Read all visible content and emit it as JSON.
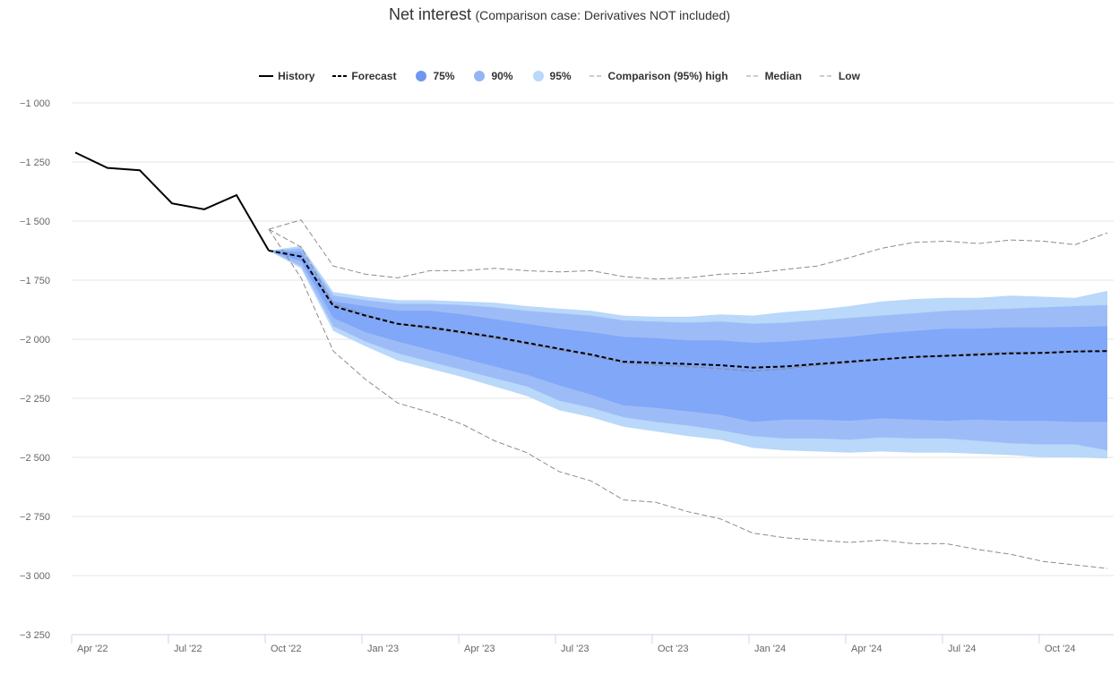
{
  "title": {
    "main": "Net interest",
    "subtitle": "(Comparison case: Derivatives NOT included)"
  },
  "legend": [
    {
      "label": "History",
      "kind": "solid",
      "color": "#000000",
      "name": "legend-history"
    },
    {
      "label": "Forecast",
      "kind": "dashed",
      "color": "#000000",
      "name": "legend-forecast"
    },
    {
      "label": "75%",
      "kind": "dot",
      "color": "#6f97f0",
      "name": "legend-75"
    },
    {
      "label": "90%",
      "kind": "dot",
      "color": "#93b5f5",
      "name": "legend-90"
    },
    {
      "label": "95%",
      "kind": "dot",
      "color": "#b9d8fa",
      "name": "legend-95"
    },
    {
      "label": "Comparison (95%) high",
      "kind": "dashed-gray",
      "color": "#999999",
      "name": "legend-comparison-high"
    },
    {
      "label": "Median",
      "kind": "dashed-gray",
      "color": "#999999",
      "name": "legend-median"
    },
    {
      "label": "Low",
      "kind": "dashed-gray",
      "color": "#999999",
      "name": "legend-low"
    }
  ],
  "chart_data": {
    "type": "area",
    "y_ticks": [
      -1000,
      -1250,
      -1500,
      -1750,
      -2000,
      -2250,
      -2500,
      -2750,
      -3000,
      -3250
    ],
    "y_tick_labels": [
      "−1 000",
      "−1 250",
      "−1 500",
      "−1 750",
      "−2 000",
      "−2 250",
      "−2 500",
      "−2 750",
      "−3 000",
      "−3 250"
    ],
    "ylim": [
      -3250,
      -1000
    ],
    "x_ticks": [
      {
        "label": "Apr '22",
        "month": 0
      },
      {
        "label": "Jul '22",
        "month": 3
      },
      {
        "label": "Oct '22",
        "month": 6
      },
      {
        "label": "Jan '23",
        "month": 9
      },
      {
        "label": "Apr '23",
        "month": 12
      },
      {
        "label": "Jul '23",
        "month": 15
      },
      {
        "label": "Oct '23",
        "month": 18
      },
      {
        "label": "Jan '24",
        "month": 21
      },
      {
        "label": "Apr '24",
        "month": 24
      },
      {
        "label": "Jul '24",
        "month": 27
      },
      {
        "label": "Oct '24",
        "month": 30
      }
    ],
    "x_range_months": [
      0,
      32.2
    ],
    "history": {
      "x": [
        0,
        1,
        2,
        3,
        4,
        5,
        6
      ],
      "y": [
        -1210,
        -1275,
        -1285,
        -1425,
        -1450,
        -1390,
        -1625
      ]
    },
    "forecast": {
      "x": [
        6,
        7,
        8,
        9,
        10,
        11,
        12,
        13,
        14,
        15,
        16,
        17,
        18,
        19,
        20,
        21,
        22,
        23,
        24,
        25,
        26,
        27,
        28,
        29,
        30,
        31,
        32
      ],
      "y": [
        -1625,
        -1650,
        -1860,
        -1900,
        -1935,
        -1950,
        -1970,
        -1990,
        -2015,
        -2040,
        -2065,
        -2095,
        -2100,
        -2105,
        -2110,
        -2120,
        -2115,
        -2105,
        -2095,
        -2085,
        -2075,
        -2070,
        -2065,
        -2060,
        -2058,
        -2052,
        -2050
      ]
    },
    "bands": [
      {
        "name": "95%",
        "color": "#b9d8fa",
        "x": [
          6,
          7,
          8,
          9,
          10,
          11,
          12,
          13,
          14,
          15,
          16,
          17,
          18,
          19,
          20,
          21,
          22,
          23,
          24,
          25,
          26,
          27,
          28,
          29,
          30,
          31,
          32
        ],
        "upper": [
          -1625,
          -1605,
          -1800,
          -1820,
          -1835,
          -1835,
          -1840,
          -1845,
          -1860,
          -1870,
          -1880,
          -1900,
          -1905,
          -1905,
          -1895,
          -1900,
          -1885,
          -1875,
          -1860,
          -1840,
          -1830,
          -1825,
          -1825,
          -1815,
          -1820,
          -1825,
          -1795
        ],
        "lower": [
          -1625,
          -1700,
          -1965,
          -2030,
          -2090,
          -2125,
          -2160,
          -2200,
          -2240,
          -2300,
          -2330,
          -2370,
          -2390,
          -2410,
          -2425,
          -2460,
          -2470,
          -2475,
          -2480,
          -2475,
          -2480,
          -2480,
          -2485,
          -2490,
          -2500,
          -2500,
          -2505
        ]
      },
      {
        "name": "90%",
        "color": "#9dbcf7",
        "x": [
          6,
          7,
          8,
          9,
          10,
          11,
          12,
          13,
          14,
          15,
          16,
          17,
          18,
          19,
          20,
          21,
          22,
          23,
          24,
          25,
          26,
          27,
          28,
          29,
          30,
          31,
          32
        ],
        "upper": [
          -1625,
          -1615,
          -1815,
          -1835,
          -1850,
          -1850,
          -1855,
          -1865,
          -1880,
          -1890,
          -1900,
          -1920,
          -1925,
          -1930,
          -1925,
          -1935,
          -1930,
          -1920,
          -1910,
          -1900,
          -1890,
          -1880,
          -1875,
          -1870,
          -1865,
          -1860,
          -1855
        ],
        "lower": [
          -1625,
          -1690,
          -1945,
          -2010,
          -2060,
          -2095,
          -2130,
          -2165,
          -2200,
          -2260,
          -2290,
          -2330,
          -2350,
          -2365,
          -2385,
          -2410,
          -2420,
          -2420,
          -2425,
          -2415,
          -2420,
          -2420,
          -2430,
          -2440,
          -2445,
          -2445,
          -2470
        ]
      },
      {
        "name": "75%",
        "color": "#80a7f8",
        "x": [
          6,
          7,
          8,
          9,
          10,
          11,
          12,
          13,
          14,
          15,
          16,
          17,
          18,
          19,
          20,
          21,
          22,
          23,
          24,
          25,
          26,
          27,
          28,
          29,
          30,
          31,
          32
        ],
        "upper": [
          -1625,
          -1630,
          -1840,
          -1860,
          -1880,
          -1880,
          -1895,
          -1915,
          -1935,
          -1955,
          -1970,
          -1990,
          -1995,
          -2005,
          -2005,
          -2015,
          -2010,
          -2000,
          -1990,
          -1975,
          -1965,
          -1955,
          -1955,
          -1950,
          -1950,
          -1948,
          -1945
        ],
        "lower": [
          -1625,
          -1670,
          -1910,
          -1970,
          -2010,
          -2045,
          -2080,
          -2115,
          -2150,
          -2195,
          -2235,
          -2280,
          -2290,
          -2305,
          -2320,
          -2350,
          -2340,
          -2340,
          -2345,
          -2335,
          -2340,
          -2345,
          -2340,
          -2345,
          -2345,
          -2350,
          -2350
        ]
      }
    ],
    "comparison_high": {
      "x": [
        6,
        7,
        8,
        9,
        10,
        11,
        12,
        13,
        14,
        15,
        16,
        17,
        18,
        19,
        20,
        21,
        22,
        23,
        24,
        25,
        26,
        27,
        28,
        29,
        30,
        31,
        32
      ],
      "y": [
        -1535,
        -1495,
        -1690,
        -1725,
        -1740,
        -1710,
        -1710,
        -1700,
        -1710,
        -1715,
        -1710,
        -1735,
        -1745,
        -1740,
        -1725,
        -1720,
        -1705,
        -1690,
        -1655,
        -1615,
        -1590,
        -1585,
        -1595,
        -1580,
        -1585,
        -1600,
        -1550
      ]
    },
    "comparison_median": {
      "x": [
        6,
        7,
        8,
        9,
        10,
        11,
        12,
        13,
        14,
        15,
        16,
        17,
        18,
        19,
        20,
        21,
        22,
        23,
        24,
        25,
        26,
        27,
        28,
        29,
        30,
        31,
        32
      ],
      "y": [
        -1535,
        -1610,
        -1850,
        -1895,
        -1935,
        -1955,
        -1975,
        -1995,
        -2020,
        -2045,
        -2070,
        -2100,
        -2110,
        -2115,
        -2125,
        -2135,
        -2125,
        -2110,
        -2100,
        -2085,
        -2075,
        -2070,
        -2060,
        -2055,
        -2055,
        -2052,
        -2050
      ]
    },
    "comparison_low": {
      "x": [
        6,
        7,
        8,
        9,
        10,
        11,
        12,
        13,
        14,
        15,
        16,
        17,
        18,
        19,
        20,
        21,
        22,
        23,
        24,
        25,
        26,
        27,
        28,
        29,
        30,
        31,
        32
      ],
      "y": [
        -1535,
        -1740,
        -2050,
        -2170,
        -2270,
        -2310,
        -2360,
        -2430,
        -2480,
        -2560,
        -2600,
        -2680,
        -2690,
        -2730,
        -2760,
        -2820,
        -2840,
        -2850,
        -2860,
        -2850,
        -2865,
        -2865,
        -2890,
        -2910,
        -2940,
        -2955,
        -2970
      ]
    },
    "grid": true,
    "legend_position": "top-center"
  }
}
